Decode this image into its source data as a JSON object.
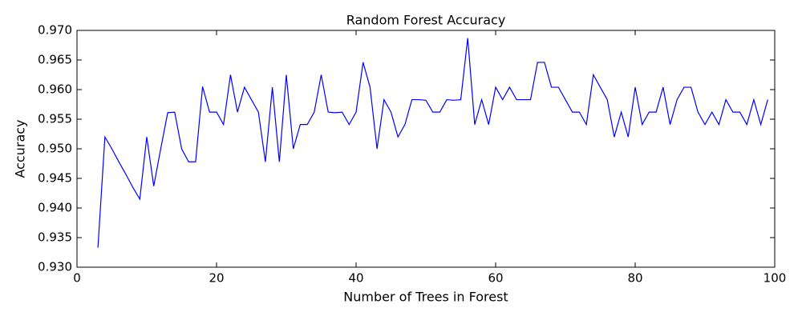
{
  "chart_data": {
    "type": "line",
    "title": "Random Forest Accuracy",
    "x_label": "Number of Trees in Forest",
    "y_label": "Accuracy",
    "x": [
      3,
      4,
      5,
      6,
      7,
      8,
      9,
      10,
      11,
      12,
      13,
      14,
      15,
      16,
      17,
      18,
      19,
      20,
      21,
      22,
      23,
      24,
      25,
      26,
      27,
      28,
      29,
      30,
      31,
      32,
      33,
      34,
      35,
      36,
      37,
      38,
      39,
      40,
      41,
      42,
      43,
      44,
      45,
      46,
      47,
      48,
      49,
      50,
      51,
      52,
      53,
      54,
      55,
      56,
      57,
      58,
      59,
      60,
      61,
      62,
      63,
      64,
      65,
      66,
      67,
      68,
      69,
      70,
      71,
      72,
      73,
      74,
      75,
      76,
      77,
      78,
      79,
      80,
      81,
      82,
      83,
      84,
      85,
      86,
      87,
      88,
      89,
      90,
      91,
      92,
      93,
      94,
      95,
      96,
      97,
      98,
      99
    ],
    "values": [
      0.9333,
      0.952,
      0.95,
      0.9478,
      0.9457,
      0.9435,
      0.9415,
      0.952,
      0.9437,
      0.95,
      0.9561,
      0.9562,
      0.95,
      0.9478,
      0.9478,
      0.9605,
      0.9562,
      0.9562,
      0.9541,
      0.9625,
      0.9562,
      0.9604,
      0.9583,
      0.9562,
      0.9478,
      0.9604,
      0.9478,
      0.9625,
      0.95,
      0.9541,
      0.9541,
      0.9562,
      0.9625,
      0.9562,
      0.9561,
      0.9562,
      0.9541,
      0.9562,
      0.9646,
      0.9604,
      0.95,
      0.9583,
      0.9562,
      0.952,
      0.9541,
      0.9583,
      0.9583,
      0.9582,
      0.9562,
      0.9562,
      0.9583,
      0.9582,
      0.9583,
      0.9687,
      0.9541,
      0.9583,
      0.9541,
      0.9604,
      0.9583,
      0.9604,
      0.9583,
      0.9583,
      0.9583,
      0.9646,
      0.9646,
      0.9604,
      0.9604,
      0.9583,
      0.9562,
      0.9562,
      0.9541,
      0.9625,
      0.9604,
      0.9583,
      0.952,
      0.9562,
      0.952,
      0.9604,
      0.9541,
      0.9562,
      0.9562,
      0.9604,
      0.9541,
      0.9583,
      0.9604,
      0.9604,
      0.9562,
      0.9541,
      0.9562,
      0.9541,
      0.9583,
      0.9562,
      0.9562,
      0.9541,
      0.9583,
      0.9541,
      0.9583
    ],
    "color": "#0000ff",
    "xlim": [
      0,
      100
    ],
    "xticks": [
      0,
      20,
      40,
      60,
      80,
      100
    ],
    "ylim": [
      0.93,
      0.97
    ],
    "yticks": [
      {
        "value": 0.93,
        "label": "0.930"
      },
      {
        "value": 0.935,
        "label": "0.935"
      },
      {
        "value": 0.94,
        "label": "0.940"
      },
      {
        "value": 0.945,
        "label": "0.945"
      },
      {
        "value": 0.95,
        "label": "0.950"
      },
      {
        "value": 0.955,
        "label": "0.955"
      },
      {
        "value": 0.96,
        "label": "0.960"
      },
      {
        "value": 0.965,
        "label": "0.965"
      },
      {
        "value": 0.97,
        "label": "0.970"
      }
    ],
    "grid": false
  }
}
